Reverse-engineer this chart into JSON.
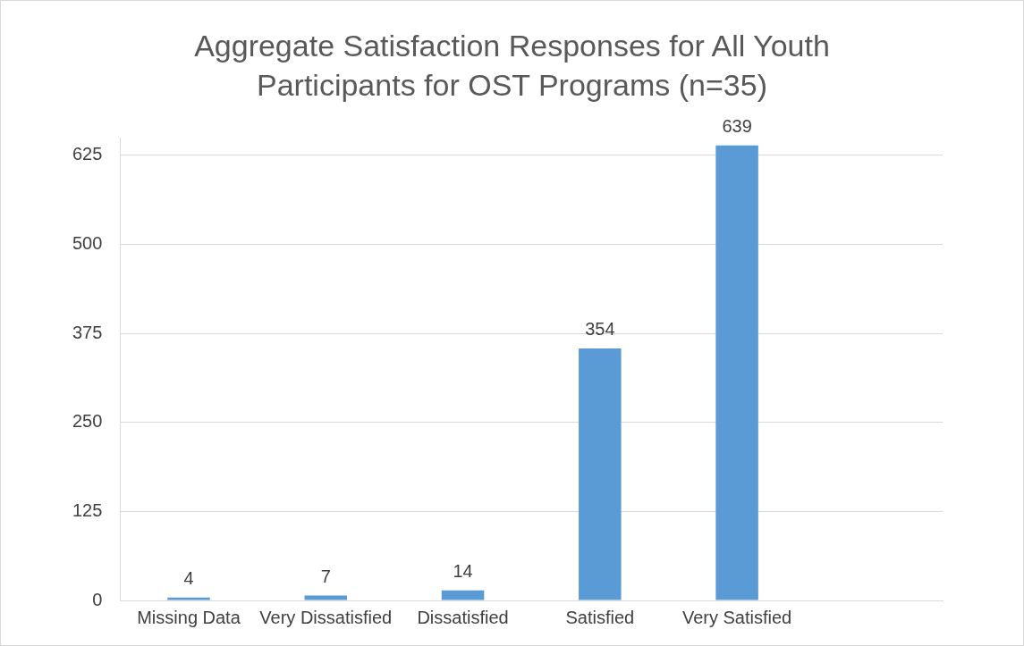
{
  "chart_data": {
    "type": "bar",
    "title": "Aggregate Satisfaction Responses for All Youth Participants for OST Programs (n=35)",
    "categories": [
      "Missing Data",
      "Very Dissatisfied",
      "Dissatisfied",
      "Satisfied",
      "Very Satisfied",
      null
    ],
    "values": [
      4,
      7,
      14,
      354,
      639,
      null
    ],
    "color": "#5b9bd5",
    "ylim": [
      0,
      650
    ],
    "yticks": [
      0,
      125,
      250,
      375,
      500,
      625
    ],
    "grid": "y",
    "data_labels": true,
    "legend": false
  }
}
